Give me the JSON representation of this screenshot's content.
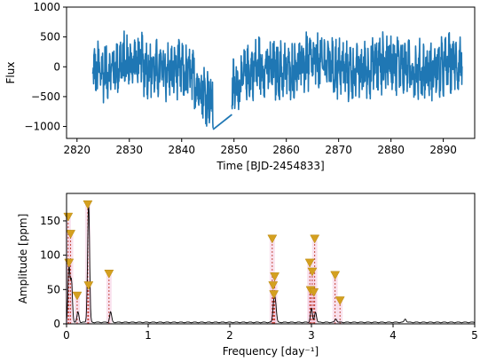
{
  "colors": {
    "flux_line": "#1f77b4",
    "amplitude_line": "#000000",
    "marker_fill": "#d4a020",
    "stem_line": "#c0392b",
    "highlight_band": "#f4cbe0"
  },
  "chart_data": [
    {
      "type": "line",
      "xlabel": "Time [BJD-2454833]",
      "ylabel": "Flux",
      "xlim": [
        2818,
        2896
      ],
      "ylim": [
        -1200,
        1000
      ],
      "xticks": [
        2820,
        2830,
        2840,
        2850,
        2860,
        2870,
        2880,
        2890
      ],
      "yticks": [
        -1000,
        -500,
        0,
        500,
        1000
      ],
      "segments": [
        {
          "t_start": 2823.0,
          "t_end": 2846.0,
          "start_level": 0,
          "end_level": -900
        },
        {
          "t_start": 2846.0,
          "t_end": 2849.6,
          "start_level": -1050,
          "end_level": -800,
          "kind": "gap"
        },
        {
          "t_start": 2849.6,
          "t_end": 2893.6,
          "start_level": -700,
          "end_level": 0
        }
      ],
      "noise_amplitude": 380,
      "grid": false
    },
    {
      "type": "line",
      "xlabel": "Frequency [day⁻¹]",
      "ylabel": "Amplitude [ppm]",
      "xlim": [
        0,
        5
      ],
      "ylim": [
        0,
        190
      ],
      "xticks": [
        0,
        1,
        2,
        3,
        4,
        5
      ],
      "yticks": [
        0,
        50,
        100,
        150
      ],
      "spectrum_peaks": [
        {
          "f": 0.03,
          "a": 80
        },
        {
          "f": 0.06,
          "a": 60
        },
        {
          "f": 0.14,
          "a": 15
        },
        {
          "f": 0.27,
          "a": 175
        },
        {
          "f": 0.54,
          "a": 15
        },
        {
          "f": 2.54,
          "a": 30
        },
        {
          "f": 2.56,
          "a": 25
        },
        {
          "f": 3.0,
          "a": 20
        },
        {
          "f": 3.05,
          "a": 15
        },
        {
          "f": 3.3,
          "a": 5
        },
        {
          "f": 4.15,
          "a": 5
        }
      ],
      "marked_frequencies": [
        {
          "f": 0.02,
          "a": 155
        },
        {
          "f": 0.03,
          "a": 88
        },
        {
          "f": 0.05,
          "a": 130
        },
        {
          "f": 0.13,
          "a": 40
        },
        {
          "f": 0.26,
          "a": 173
        },
        {
          "f": 0.27,
          "a": 55
        },
        {
          "f": 0.52,
          "a": 72
        },
        {
          "f": 2.52,
          "a": 123
        },
        {
          "f": 2.53,
          "a": 55
        },
        {
          "f": 2.55,
          "a": 68
        },
        {
          "f": 2.54,
          "a": 42
        },
        {
          "f": 2.98,
          "a": 88
        },
        {
          "f": 2.99,
          "a": 48
        },
        {
          "f": 3.01,
          "a": 75
        },
        {
          "f": 3.03,
          "a": 45
        },
        {
          "f": 3.04,
          "a": 123
        },
        {
          "f": 3.29,
          "a": 70
        },
        {
          "f": 3.35,
          "a": 33
        }
      ],
      "grid": false
    }
  ]
}
